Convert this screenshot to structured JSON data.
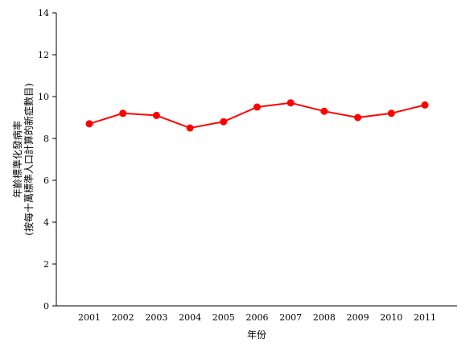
{
  "chart_data": {
    "type": "line",
    "title": "",
    "xlabel": "年份",
    "ylabel": "年齡標準化發病率",
    "ylabel_sub": "(按每十萬標準人口計算的新症數目)",
    "ylim": [
      0,
      14
    ],
    "yticks": [
      0,
      2,
      4,
      6,
      8,
      10,
      12,
      14
    ],
    "categories": [
      "2001",
      "2002",
      "2003",
      "2004",
      "2005",
      "2006",
      "2007",
      "2008",
      "2009",
      "2010",
      "2011"
    ],
    "series": [
      {
        "values": [
          8.7,
          9.2,
          9.1,
          8.5,
          8.8,
          9.5,
          9.7,
          9.3,
          9.0,
          9.2,
          9.6
        ],
        "color": "#ff0000"
      }
    ],
    "grid": false,
    "legend": "none"
  }
}
